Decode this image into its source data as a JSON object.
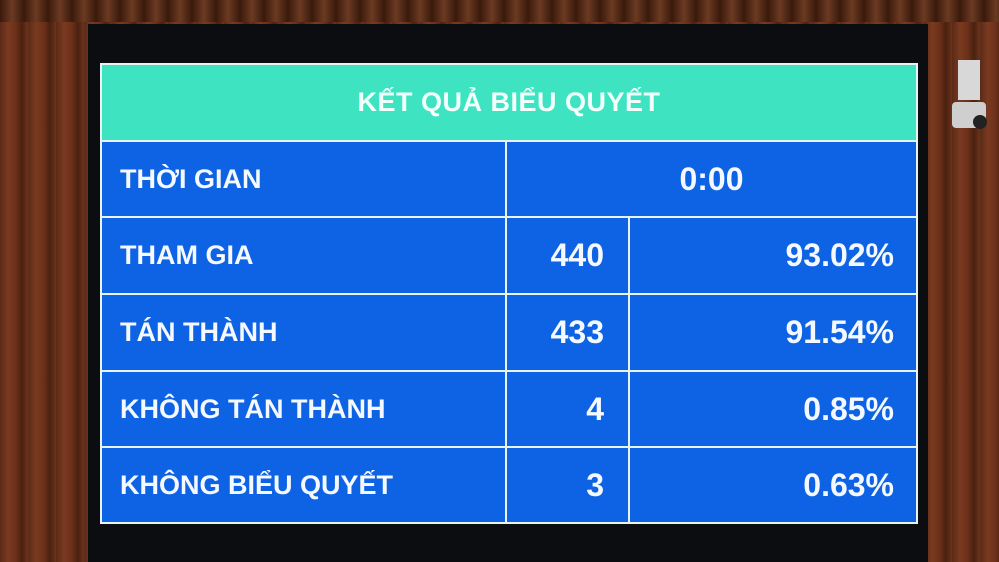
{
  "title": "KẾT QUẢ BIỂU QUYẾT",
  "time": {
    "label": "THỜI GIAN",
    "value": "0:00"
  },
  "rows": [
    {
      "label": "THAM GIA",
      "count": "440",
      "percent": "93.02%"
    },
    {
      "label": "TÁN THÀNH",
      "count": "433",
      "percent": "91.54%"
    },
    {
      "label": "KHÔNG TÁN THÀNH",
      "count": "4",
      "percent": "0.85%"
    },
    {
      "label": "KHÔNG BIỂU QUYẾT",
      "count": "3",
      "percent": "0.63%"
    }
  ],
  "colors": {
    "header": "#3ee4c2",
    "cells": "#0e62e4",
    "text": "#ffffff"
  }
}
